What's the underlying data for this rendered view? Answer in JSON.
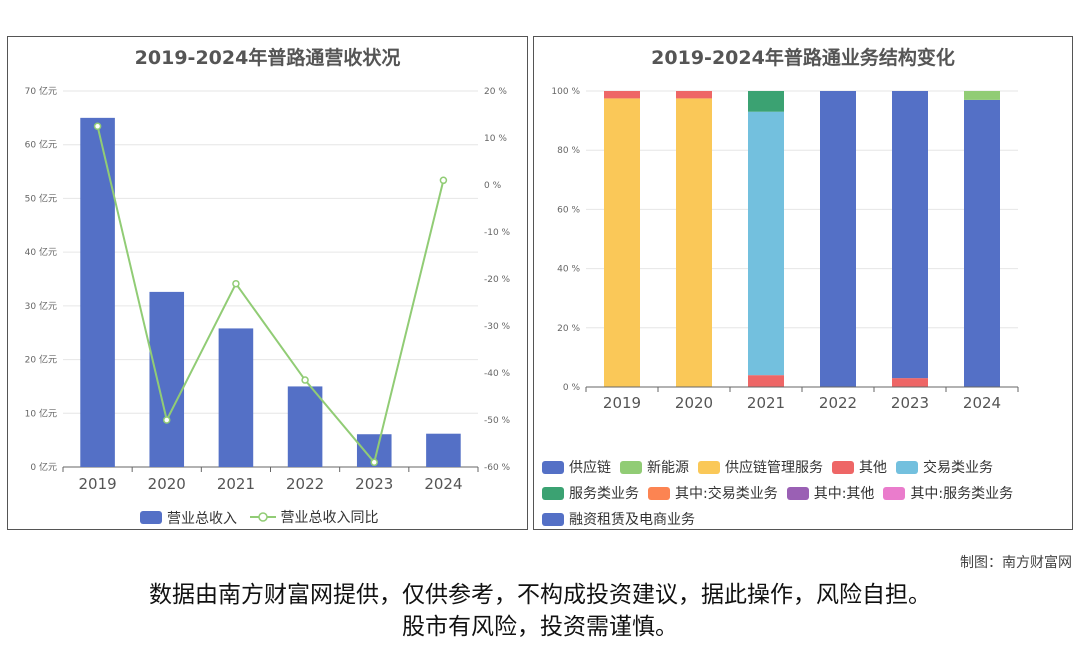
{
  "left_chart": {
    "title": "2019-2024年普路通营收状况",
    "legend": {
      "bar": "营业总收入",
      "line": "营业总收入同比"
    }
  },
  "right_chart": {
    "title": "2019-2024年普路通业务结构变化",
    "legend": [
      "供应链",
      "新能源",
      "供应链管理服务",
      "其他",
      "交易类业务",
      "服务类业务",
      "其中:交易类业务",
      "其中:其他",
      "其中:服务类业务",
      "融资租赁及电商业务"
    ]
  },
  "credit": "制图：南方财富网",
  "disclaimer": {
    "line1": "数据由南方财富网提供，仅供参考，不构成投资建议，据此操作，风险自担。",
    "line2": "股市有风险，投资需谨慎。"
  },
  "colors": {
    "bar": "#5470c6",
    "line": "#91cc75",
    "供应链": "#5470c6",
    "新能源": "#91cc75",
    "供应链管理服务": "#fac858",
    "其他": "#ee6666",
    "交易类业务": "#73c0de",
    "服务类业务": "#3ba272",
    "其中:交易类业务": "#fc8452",
    "其中:其他": "#9a60b4",
    "其中:服务类业务": "#ea7ccc",
    "融资租赁及电商业务": "#5470c6"
  },
  "chart_data": [
    {
      "type": "bar",
      "title": "2019-2024年普路通营收状况",
      "categories": [
        "2019",
        "2020",
        "2021",
        "2022",
        "2023",
        "2024"
      ],
      "series": [
        {
          "name": "营业总收入",
          "type": "bar",
          "axis": "left",
          "values": [
            65.0,
            32.6,
            25.8,
            15.0,
            6.1,
            6.2
          ]
        },
        {
          "name": "营业总收入同比",
          "type": "line",
          "axis": "right",
          "values": [
            12.5,
            -50.0,
            -21.0,
            -41.5,
            -59.0,
            1.0
          ]
        }
      ],
      "y_left": {
        "ticks": [
          "0 亿元",
          "10 亿元",
          "20 亿元",
          "30 亿元",
          "40 亿元",
          "50 亿元",
          "60 亿元",
          "70 亿元"
        ],
        "ylim": [
          0,
          70
        ]
      },
      "y_right": {
        "ticks": [
          "-60 %",
          "-50 %",
          "-40 %",
          "-30 %",
          "-20 %",
          "-10 %",
          "0 %",
          "10 %",
          "20 %"
        ],
        "ylim": [
          -60,
          20
        ]
      },
      "legend_position": "bottom"
    },
    {
      "type": "bar",
      "stacked": true,
      "title": "2019-2024年普路通业务结构变化",
      "categories": [
        "2019",
        "2020",
        "2021",
        "2022",
        "2023",
        "2024"
      ],
      "series": [
        {
          "name": "供应链管理服务",
          "values": [
            97.5,
            97.5,
            0,
            0,
            0,
            0
          ]
        },
        {
          "name": "其他",
          "values": [
            2.5,
            2.5,
            4.0,
            0,
            3.0,
            0
          ]
        },
        {
          "name": "交易类业务",
          "values": [
            0,
            0,
            89.0,
            0,
            0,
            0
          ]
        },
        {
          "name": "服务类业务",
          "values": [
            0,
            0,
            7.0,
            0,
            0,
            0
          ]
        },
        {
          "name": "供应链",
          "values": [
            0,
            0,
            0,
            100.0,
            97.0,
            97.0
          ]
        },
        {
          "name": "新能源",
          "values": [
            0,
            0,
            0,
            0,
            0,
            3.0
          ]
        }
      ],
      "y_ticks": [
        "0 %",
        "20 %",
        "40 %",
        "60 %",
        "80 %",
        "100 %"
      ],
      "ylim": [
        0,
        100
      ],
      "legend_position": "bottom"
    }
  ]
}
